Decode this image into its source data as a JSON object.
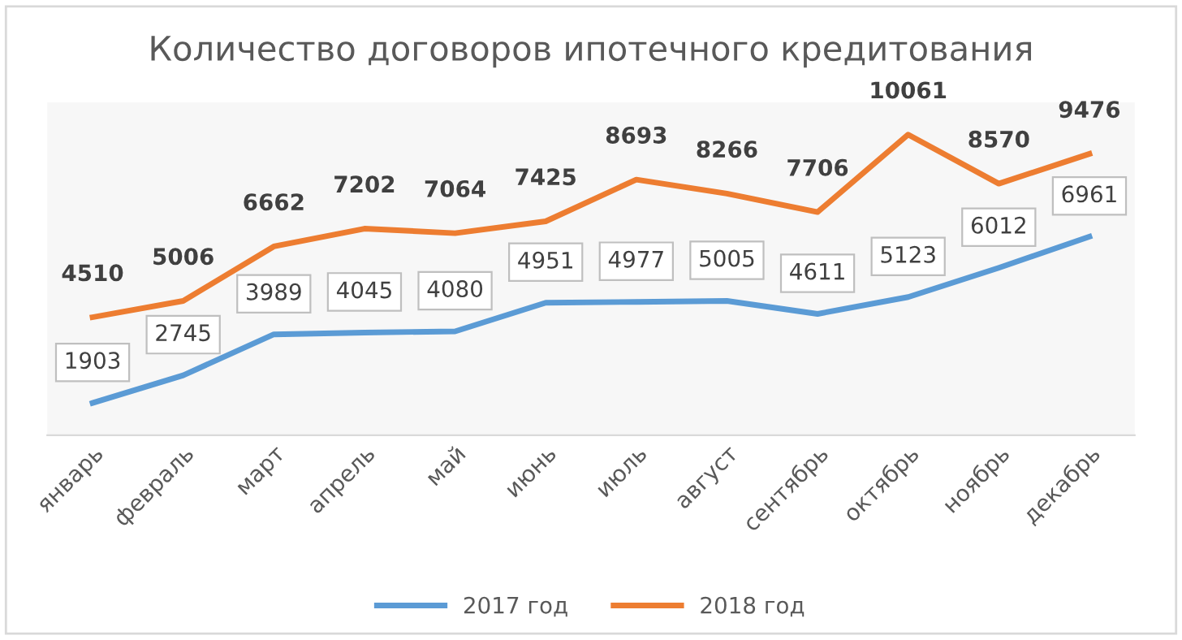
{
  "chart_data": {
    "type": "line",
    "title": "Количество договоров ипотечного кредитования",
    "categories": [
      "январь",
      "февраль",
      "март",
      "апрель",
      "май",
      "июнь",
      "июль",
      "август",
      "сентябрь",
      "октябрь",
      "ноябрь",
      "декабрь"
    ],
    "series": [
      {
        "name": "2017 год",
        "color": "#5b9bd5",
        "values": [
          1903,
          2745,
          3989,
          4045,
          4080,
          4951,
          4977,
          5005,
          4611,
          5123,
          6012,
          6961
        ]
      },
      {
        "name": "2018 год",
        "color": "#ed7d31",
        "values": [
          4510,
          5006,
          6662,
          7202,
          7064,
          7425,
          8693,
          8266,
          7706,
          10061,
          8570,
          9476
        ]
      }
    ],
    "data_labels": true,
    "legend": "bottom",
    "grid": false,
    "marker": "none",
    "line_style": "solid"
  }
}
